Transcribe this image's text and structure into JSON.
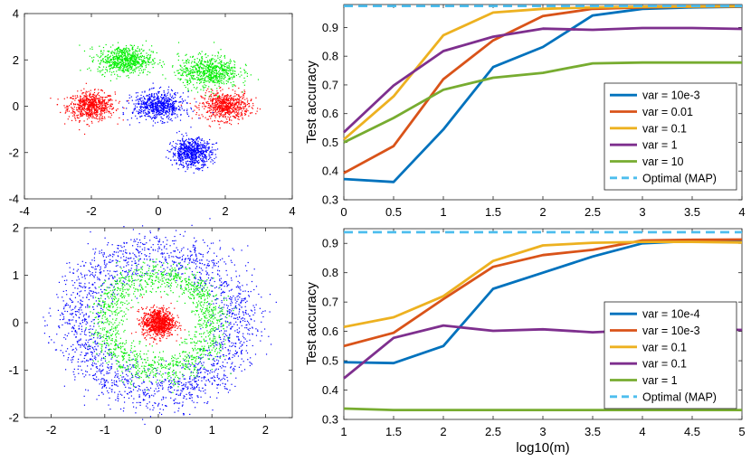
{
  "chart_data": [
    {
      "type": "scatter",
      "title": "",
      "xlabel": "",
      "ylabel": "",
      "xlim": [
        -4,
        4
      ],
      "ylim": [
        -4,
        4
      ],
      "xticks": [
        "-4",
        "-2",
        "0",
        "2",
        "4"
      ],
      "yticks": [
        "-4",
        "-2",
        "0",
        "2",
        "4"
      ],
      "grid": false,
      "clusters": [
        {
          "class": "red",
          "color": "#ff0000",
          "center": [
            -2,
            0
          ],
          "std": [
            0.35,
            0.3
          ]
        },
        {
          "class": "red",
          "color": "#ff0000",
          "center": [
            2,
            0
          ],
          "std": [
            0.35,
            0.3
          ]
        },
        {
          "class": "green",
          "color": "#00ee00",
          "center": [
            -1,
            2
          ],
          "std": [
            0.4,
            0.3
          ]
        },
        {
          "class": "green",
          "color": "#00ee00",
          "center": [
            1.5,
            1.5
          ],
          "std": [
            0.45,
            0.35
          ]
        },
        {
          "class": "blue",
          "color": "#0000ff",
          "center": [
            0,
            0
          ],
          "std": [
            0.38,
            0.3
          ]
        },
        {
          "class": "blue",
          "color": "#0000ff",
          "center": [
            1,
            -2
          ],
          "std": [
            0.3,
            0.3
          ]
        }
      ]
    },
    {
      "type": "line",
      "xlabel": "",
      "ylabel": "Test accuracy",
      "xlim": [
        0,
        4
      ],
      "ylim": [
        0.3,
        0.98
      ],
      "xticks": [
        "0",
        "0.5",
        "1",
        "1.5",
        "2",
        "2.5",
        "3",
        "3.5",
        "4"
      ],
      "yticks": [
        "0.3",
        "0.4",
        "0.5",
        "0.6",
        "0.7",
        "0.8",
        "0.9"
      ],
      "x": [
        0,
        0.5,
        1,
        1.5,
        2,
        2.5,
        3,
        3.5,
        4
      ],
      "legend_position": "right",
      "series": [
        {
          "name": "var = 10e-3",
          "color": "#0072bd",
          "dashed": false,
          "values": [
            0.372,
            0.362,
            0.545,
            0.762,
            0.832,
            0.942,
            0.965,
            0.97,
            0.972
          ]
        },
        {
          "name": "var = 0.01",
          "color": "#d95319",
          "dashed": false,
          "values": [
            0.393,
            0.487,
            0.72,
            0.855,
            0.94,
            0.965,
            0.97,
            0.972,
            0.973
          ]
        },
        {
          "name": "var = 0.1",
          "color": "#edb120",
          "dashed": false,
          "values": [
            0.51,
            0.66,
            0.873,
            0.952,
            0.965,
            0.97,
            0.972,
            0.973,
            0.974
          ]
        },
        {
          "name": "var = 1",
          "color": "#7e2f8e",
          "dashed": false,
          "values": [
            0.535,
            0.698,
            0.818,
            0.868,
            0.896,
            0.892,
            0.898,
            0.898,
            0.895
          ]
        },
        {
          "name": "var = 10",
          "color": "#77ac30",
          "dashed": false,
          "values": [
            0.5,
            0.585,
            0.683,
            0.725,
            0.742,
            0.775,
            0.778,
            0.778,
            0.778
          ]
        },
        {
          "name": "Optimal (MAP)",
          "color": "#4dbeee",
          "dashed": true,
          "values": [
            0.975,
            0.975,
            0.975,
            0.975,
            0.975,
            0.975,
            0.975,
            0.975,
            0.975
          ]
        }
      ]
    },
    {
      "type": "scatter",
      "title": "",
      "xlabel": "",
      "ylabel": "",
      "xlim": [
        -2.5,
        2.5
      ],
      "ylim": [
        -2,
        2
      ],
      "xticks": [
        "-2",
        "-1",
        "0",
        "1",
        "2"
      ],
      "yticks": [
        "-2",
        "-1",
        "0",
        "1",
        "2"
      ],
      "grid": false,
      "classes": [
        {
          "class": "blue",
          "color": "#0000ff",
          "shape": "ring",
          "radius": 1.5,
          "width": 0.25
        },
        {
          "class": "green",
          "color": "#00ee00",
          "shape": "ring",
          "radius": 1.0,
          "width": 0.17
        },
        {
          "class": "red",
          "color": "#ff0000",
          "shape": "blob",
          "center": [
            0,
            0
          ],
          "std": 0.15
        }
      ]
    },
    {
      "type": "line",
      "xlabel": "log10(m)",
      "ylabel": "Test accuracy",
      "xlim": [
        1,
        5
      ],
      "ylim": [
        0.3,
        0.95
      ],
      "xticks": [
        "1",
        "1.5",
        "2",
        "2.5",
        "3",
        "3.5",
        "4",
        "4.5",
        "5"
      ],
      "yticks": [
        "0.3",
        "0.4",
        "0.5",
        "0.6",
        "0.7",
        "0.8",
        "0.9"
      ],
      "x": [
        1,
        1.5,
        2,
        2.5,
        3,
        3.5,
        4,
        4.5,
        5
      ],
      "legend_position": "right",
      "series": [
        {
          "name": "var = 10e-4",
          "color": "#0072bd",
          "dashed": false,
          "values": [
            0.495,
            0.492,
            0.55,
            0.745,
            0.8,
            0.855,
            0.9,
            0.908,
            0.908
          ]
        },
        {
          "name": "var = 10e-3",
          "color": "#d95319",
          "dashed": false,
          "values": [
            0.55,
            0.595,
            0.71,
            0.82,
            0.86,
            0.878,
            0.91,
            0.912,
            0.913
          ]
        },
        {
          "name": "var = 0.1",
          "color": "#edb120",
          "dashed": false,
          "values": [
            0.615,
            0.648,
            0.72,
            0.84,
            0.893,
            0.902,
            0.905,
            0.905,
            0.903
          ]
        },
        {
          "name": "var = 0.1",
          "color": "#7e2f8e",
          "dashed": false,
          "values": [
            0.44,
            0.578,
            0.62,
            0.602,
            0.607,
            0.597,
            0.605,
            0.608,
            0.605
          ]
        },
        {
          "name": "var = 1",
          "color": "#77ac30",
          "dashed": false,
          "values": [
            0.337,
            0.332,
            0.332,
            0.332,
            0.332,
            0.332,
            0.332,
            0.332,
            0.332
          ]
        },
        {
          "name": "Optimal (MAP)",
          "color": "#4dbeee",
          "dashed": true,
          "values": [
            0.938,
            0.938,
            0.938,
            0.938,
            0.938,
            0.938,
            0.938,
            0.938,
            0.938
          ]
        }
      ]
    }
  ]
}
